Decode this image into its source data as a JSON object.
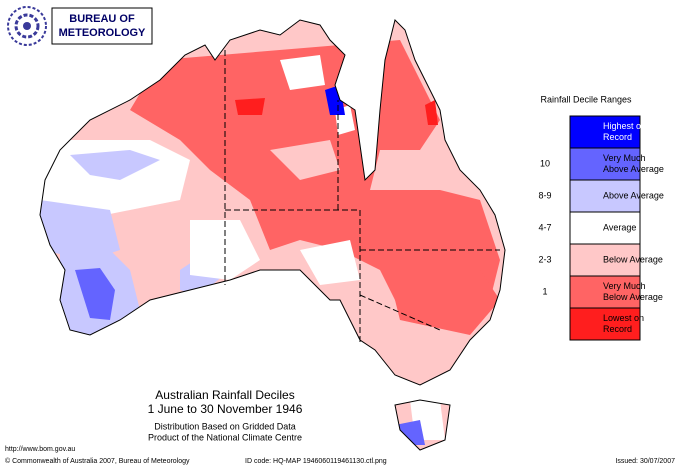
{
  "logo": {
    "lines": [
      "BUREAU OF",
      "METEOROLOGY"
    ]
  },
  "legend": {
    "title": "Rainfall Decile Ranges",
    "items": [
      {
        "label": [
          "Highest on",
          "Record"
        ],
        "color": "#0000ff"
      },
      {
        "label": [
          "Very Much",
          "Above Average"
        ],
        "range": "10",
        "color": "#6464ff"
      },
      {
        "label": [
          "Above Average"
        ],
        "range": "8-9",
        "color": "#c8c8ff"
      },
      {
        "label": [
          "Average"
        ],
        "range": "4-7",
        "color": "#ffffff"
      },
      {
        "label": [
          "Below Average"
        ],
        "range": "2-3",
        "color": "#ffc8c8"
      },
      {
        "label": [
          "Very Much",
          "Below Average"
        ],
        "range": "1",
        "color": "#ff6464"
      },
      {
        "label": [
          "Lowest on",
          "Record"
        ],
        "color": "#ff1e1e"
      }
    ]
  },
  "map_title": {
    "lines": [
      "Australian Rainfall Deciles",
      "1 June to 30 November 1946"
    ],
    "notes": [
      "Distribution Based on Gridded Data",
      "Product of the National Climate Centre"
    ]
  },
  "url": "http://www.bom.gov.au",
  "footer": {
    "copyright": "© Commonwealth of Australia 2007, Bureau of Meteorology",
    "id_code": "ID code: HQ-MAP 1946060119461130.ctl.png",
    "issued": "Issued: 30/07/2007"
  }
}
